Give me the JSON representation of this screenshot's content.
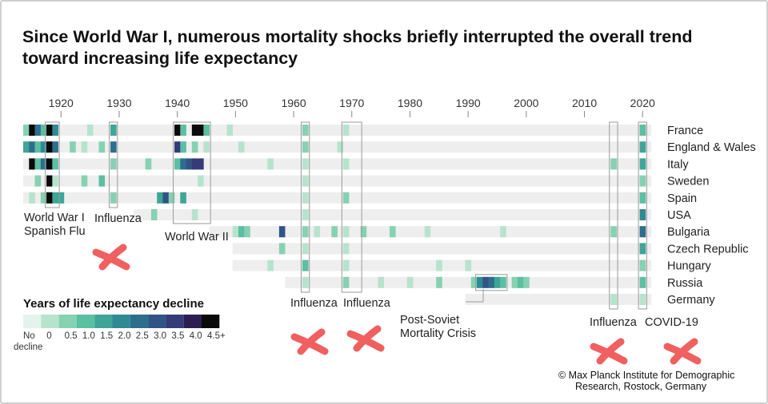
{
  "title": "Since World War I, numerous mortality shocks briefly interrupted the overall trend toward increasing life expectancy",
  "credit": {
    "line1": "© Max Planck Institute for Demographic",
    "line2": "Research, Rostock, Germany"
  },
  "colors": {
    "row_background": "#eeeeee",
    "scale": [
      "#e4f3ec",
      "#b7e3cd",
      "#86d1b2",
      "#5bbfa2",
      "#3ea597",
      "#2f8a93",
      "#2d6e8d",
      "#315486",
      "#353a78",
      "#2b1f52",
      "#0a0a0a"
    ],
    "highlight_box": "#9a9a9a",
    "red_marks": "#f06060"
  },
  "chart_data": {
    "type": "heatmap",
    "title": "Since World War I, numerous mortality shocks briefly interrupted the overall trend toward increasing life expectancy",
    "x_range": [
      1914,
      2021
    ],
    "x_ticks": [
      1920,
      1930,
      1940,
      1950,
      1960,
      1970,
      1980,
      1990,
      2000,
      2010,
      2020
    ],
    "rows": [
      {
        "name": "France",
        "start": 1914,
        "cells": [
          [
            1914,
            2
          ],
          [
            1915,
            10
          ],
          [
            1916,
            6
          ],
          [
            1917,
            3
          ],
          [
            1918,
            10
          ],
          [
            1919,
            5
          ],
          [
            1925,
            1
          ],
          [
            1929,
            4
          ],
          [
            1940,
            10
          ],
          [
            1941,
            3
          ],
          [
            1943,
            10
          ],
          [
            1944,
            10
          ],
          [
            1945,
            3
          ],
          [
            1949,
            1
          ],
          [
            1962,
            2
          ],
          [
            1969,
            1
          ],
          [
            2020,
            3
          ]
        ]
      },
      {
        "name": "England & Wales",
        "start": 1914,
        "cells": [
          [
            1914,
            4
          ],
          [
            1915,
            6
          ],
          [
            1916,
            3
          ],
          [
            1917,
            5
          ],
          [
            1918,
            10
          ],
          [
            1919,
            6
          ],
          [
            1922,
            2
          ],
          [
            1924,
            1
          ],
          [
            1927,
            2
          ],
          [
            1929,
            6
          ],
          [
            1940,
            8
          ],
          [
            1941,
            3
          ],
          [
            1943,
            2
          ],
          [
            1945,
            1
          ],
          [
            1951,
            1
          ],
          [
            1962,
            2
          ],
          [
            1968,
            1
          ],
          [
            2020,
            4
          ]
        ]
      },
      {
        "name": "Italy",
        "start": 1914,
        "cells": [
          [
            1915,
            10
          ],
          [
            1916,
            3
          ],
          [
            1917,
            6
          ],
          [
            1918,
            10
          ],
          [
            1919,
            3
          ],
          [
            1929,
            2
          ],
          [
            1935,
            2
          ],
          [
            1940,
            3
          ],
          [
            1941,
            6
          ],
          [
            1942,
            7
          ],
          [
            1943,
            8
          ],
          [
            1944,
            8
          ],
          [
            1956,
            1
          ],
          [
            1962,
            1
          ],
          [
            1969,
            1
          ],
          [
            2015,
            2
          ],
          [
            2020,
            4
          ]
        ]
      },
      {
        "name": "Sweden",
        "start": 1914,
        "cells": [
          [
            1916,
            2
          ],
          [
            1918,
            10
          ],
          [
            1919,
            1
          ],
          [
            1924,
            2
          ],
          [
            1927,
            3
          ],
          [
            1944,
            1
          ],
          [
            1962,
            1
          ],
          [
            2020,
            2
          ]
        ]
      },
      {
        "name": "Spain",
        "start": 1914,
        "cells": [
          [
            1915,
            1
          ],
          [
            1917,
            2
          ],
          [
            1918,
            10
          ],
          [
            1919,
            4
          ],
          [
            1920,
            4
          ],
          [
            1929,
            2
          ],
          [
            1937,
            4
          ],
          [
            1938,
            7
          ],
          [
            1939,
            2
          ],
          [
            1941,
            4
          ],
          [
            1962,
            1
          ],
          [
            1969,
            2
          ],
          [
            2020,
            3
          ]
        ]
      },
      {
        "name": "USA",
        "start": 1933,
        "cells": [
          [
            1936,
            2
          ],
          [
            1943,
            1
          ],
          [
            1962,
            1
          ],
          [
            2020,
            5
          ]
        ]
      },
      {
        "name": "Bulgaria",
        "start": 1946,
        "cells": [
          [
            1950,
            1
          ],
          [
            1951,
            3
          ],
          [
            1952,
            2
          ],
          [
            1958,
            7
          ],
          [
            1962,
            2
          ],
          [
            1964,
            1
          ],
          [
            1967,
            2
          ],
          [
            1969,
            1
          ],
          [
            1972,
            2
          ],
          [
            1977,
            2
          ],
          [
            1983,
            1
          ],
          [
            1996,
            1
          ],
          [
            2015,
            2
          ],
          [
            2020,
            6
          ]
        ]
      },
      {
        "name": "Czech Republic",
        "start": 1950,
        "cells": [
          [
            1958,
            2
          ],
          [
            1962,
            1
          ],
          [
            1969,
            1
          ],
          [
            2020,
            4
          ]
        ]
      },
      {
        "name": "Hungary",
        "start": 1950,
        "cells": [
          [
            1956,
            1
          ],
          [
            1962,
            3
          ],
          [
            1969,
            1
          ],
          [
            1985,
            1
          ],
          [
            1990,
            1
          ],
          [
            2020,
            2
          ]
        ]
      },
      {
        "name": "Russia",
        "start": 1959,
        "cells": [
          [
            1962,
            1
          ],
          [
            1969,
            2
          ],
          [
            1975,
            1
          ],
          [
            1980,
            1
          ],
          [
            1985,
            2
          ],
          [
            1991,
            2
          ],
          [
            1992,
            5
          ],
          [
            1993,
            7
          ],
          [
            1994,
            6
          ],
          [
            1995,
            4
          ],
          [
            1996,
            3
          ],
          [
            1998,
            2
          ],
          [
            1999,
            3
          ],
          [
            2000,
            2
          ],
          [
            2020,
            3
          ]
        ]
      },
      {
        "name": "Germany",
        "start": 1990,
        "cells": [
          [
            2015,
            1
          ],
          [
            2020,
            1
          ]
        ]
      }
    ],
    "highlight_boxes": [
      {
        "years": [
          1918,
          1919
        ],
        "rows": [
          0,
          4
        ],
        "label_lines": [
          "World War I",
          "Spanish Flu"
        ]
      },
      {
        "years": [
          1929,
          1929
        ],
        "rows": [
          0,
          4
        ],
        "label_lines": [
          "Influenza"
        ]
      },
      {
        "years": [
          1940,
          1945
        ],
        "rows": [
          0,
          5
        ],
        "label_lines": [
          "World War II"
        ]
      },
      {
        "years": [
          1962,
          1962
        ],
        "rows": [
          0,
          9
        ],
        "label_lines": [
          "Influenza"
        ]
      },
      {
        "years": [
          1969,
          1971
        ],
        "rows": [
          0,
          9
        ],
        "label_lines": [
          "Influenza"
        ]
      },
      {
        "years": [
          1992,
          1996
        ],
        "rows": [
          9,
          9
        ],
        "label_lines": [
          "Post-Soviet",
          "Mortality Crisis"
        ]
      },
      {
        "years": [
          2015,
          2015
        ],
        "rows": [
          0,
          10
        ],
        "label_lines": [
          "Influenza"
        ]
      },
      {
        "years": [
          2020,
          2020
        ],
        "rows": [
          0,
          10
        ],
        "label_lines": [
          "COVID-19"
        ]
      }
    ],
    "legend": {
      "title": "Years of life expectancy decline",
      "bins": [
        "No decline",
        "0",
        "0.5",
        "1.0",
        "1.5",
        "2.0",
        "2.5",
        "3.0",
        "3.5",
        "4.0",
        "4.5+"
      ]
    }
  }
}
